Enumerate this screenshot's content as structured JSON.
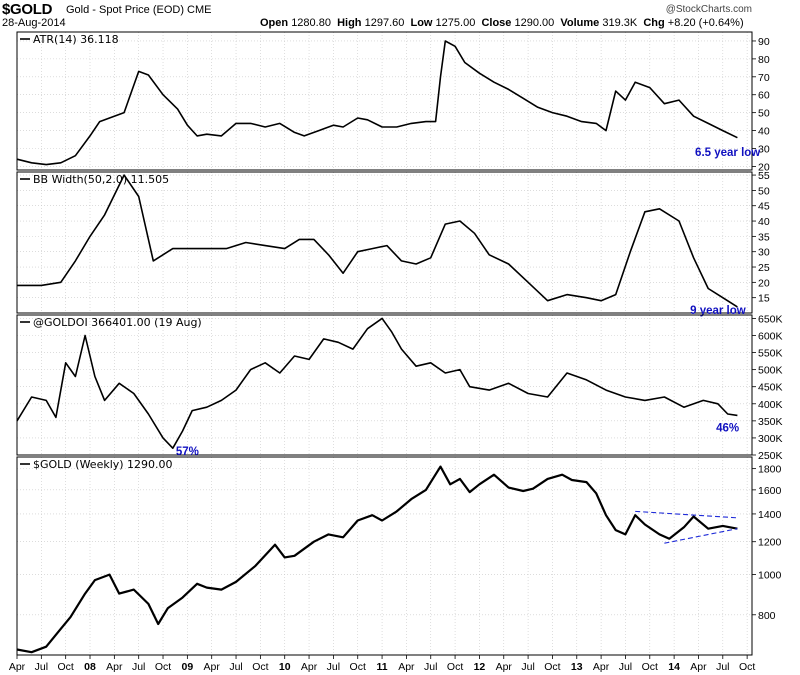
{
  "header": {
    "symbol": "$GOLD",
    "description": "Gold - Spot Price (EOD)",
    "exchange": "CME",
    "date": "28-Aug-2014",
    "open_label": "Open",
    "open": "1280.80",
    "high_label": "High",
    "high": "1297.60",
    "low_label": "Low",
    "low": "1275.00",
    "close_label": "Close",
    "close": "1290.00",
    "volume_label": "Volume",
    "volume": "319.3K",
    "chg_label": "Chg",
    "chg": "+8.20 (+0.64%)",
    "copyright": "@StockCharts.com"
  },
  "colors": {
    "line": "#000000",
    "annotation": "#1010c0",
    "trendline": "#1f2bd8",
    "grid": "#c8c8c8"
  },
  "chart_data": [
    {
      "type": "line",
      "panel": "ATR",
      "title": "ATR(14) 36.118",
      "ylim": [
        18,
        95
      ],
      "y_ticks": [
        20,
        30,
        40,
        50,
        60,
        70,
        80,
        90
      ],
      "y_tick_labels": [
        "20",
        "30",
        "40",
        "50",
        "60",
        "70",
        "80",
        "90"
      ],
      "annotation": {
        "text": "6.5 year low",
        "x": 2014.55,
        "y": 28
      },
      "x": [
        2007.25,
        2007.4,
        2007.55,
        2007.7,
        2007.85,
        2008.0,
        2008.1,
        2008.2,
        2008.35,
        2008.5,
        2008.6,
        2008.75,
        2008.9,
        2009.0,
        2009.1,
        2009.2,
        2009.35,
        2009.5,
        2009.65,
        2009.8,
        2009.95,
        2010.1,
        2010.2,
        2010.35,
        2010.5,
        2010.6,
        2010.75,
        2010.85,
        2011.0,
        2011.15,
        2011.3,
        2011.45,
        2011.55,
        2011.6,
        2011.65,
        2011.75,
        2011.85,
        2012.0,
        2012.15,
        2012.3,
        2012.45,
        2012.6,
        2012.75,
        2012.9,
        2013.05,
        2013.2,
        2013.3,
        2013.4,
        2013.5,
        2013.6,
        2013.75,
        2013.9,
        2014.05,
        2014.2,
        2014.35,
        2014.5,
        2014.65
      ],
      "values": [
        24,
        22,
        21,
        22,
        26,
        37,
        45,
        47,
        50,
        73,
        71,
        60,
        52,
        43,
        37,
        38,
        37,
        44,
        44,
        42,
        44,
        39,
        37,
        40,
        43,
        42,
        47,
        46,
        42,
        42,
        44,
        45,
        45,
        70,
        90,
        87,
        78,
        72,
        67,
        63,
        58,
        53,
        50,
        48,
        45,
        44,
        40,
        62,
        57,
        67,
        64,
        55,
        57,
        48,
        44,
        40,
        36
      ]
    },
    {
      "type": "line",
      "panel": "BB Width",
      "title": "BB Width(50,2.0) 11.505",
      "ylim": [
        10,
        56
      ],
      "y_ticks": [
        15,
        20,
        25,
        30,
        35,
        40,
        45,
        50,
        55
      ],
      "y_tick_labels": [
        "15",
        "20",
        "25",
        "30",
        "35",
        "40",
        "45",
        "50",
        "55"
      ],
      "annotation": {
        "text": "9 year low",
        "x": 2014.45,
        "y": 11
      },
      "x": [
        2007.25,
        2007.5,
        2007.7,
        2007.85,
        2008.0,
        2008.15,
        2008.35,
        2008.5,
        2008.65,
        2008.85,
        2009.0,
        2009.2,
        2009.4,
        2009.6,
        2009.8,
        2010.0,
        2010.15,
        2010.3,
        2010.45,
        2010.6,
        2010.75,
        2010.9,
        2011.05,
        2011.2,
        2011.35,
        2011.5,
        2011.65,
        2011.8,
        2011.95,
        2012.1,
        2012.3,
        2012.5,
        2012.7,
        2012.9,
        2013.1,
        2013.25,
        2013.4,
        2013.55,
        2013.7,
        2013.85,
        2014.05,
        2014.2,
        2014.35,
        2014.5,
        2014.65
      ],
      "values": [
        19,
        19,
        20,
        27,
        35,
        42,
        55,
        48,
        27,
        31,
        31,
        31,
        31,
        33,
        32,
        31,
        34,
        34,
        29,
        23,
        30,
        31,
        32,
        27,
        26,
        28,
        39,
        40,
        36,
        29,
        26,
        20,
        14,
        16,
        15,
        14,
        16,
        30,
        43,
        44,
        40,
        28,
        18,
        15,
        12
      ]
    },
    {
      "type": "line",
      "panel": "Open Interest",
      "title": "@GOLDOI 366401.00 (19 Aug)",
      "ylim": [
        250000,
        660000
      ],
      "y_ticks": [
        250000,
        300000,
        350000,
        400000,
        450000,
        500000,
        550000,
        600000,
        650000
      ],
      "y_tick_labels": [
        "250K",
        "300K",
        "350K",
        "400K",
        "450K",
        "500K",
        "550K",
        "600K",
        "650K"
      ],
      "annotations": [
        {
          "text": "57%",
          "x": 2009.0,
          "y": 262000
        },
        {
          "text": "46%",
          "x": 2014.55,
          "y": 330000
        }
      ],
      "x": [
        2007.25,
        2007.4,
        2007.55,
        2007.65,
        2007.75,
        2007.85,
        2007.95,
        2008.05,
        2008.15,
        2008.3,
        2008.45,
        2008.6,
        2008.75,
        2008.85,
        2008.95,
        2009.05,
        2009.2,
        2009.35,
        2009.5,
        2009.65,
        2009.8,
        2009.95,
        2010.1,
        2010.25,
        2010.4,
        2010.55,
        2010.7,
        2010.85,
        2011.0,
        2011.1,
        2011.2,
        2011.35,
        2011.5,
        2011.65,
        2011.8,
        2011.9,
        2012.1,
        2012.3,
        2012.5,
        2012.7,
        2012.9,
        2013.1,
        2013.3,
        2013.5,
        2013.7,
        2013.9,
        2014.1,
        2014.3,
        2014.45,
        2014.55,
        2014.65
      ],
      "values": [
        350000,
        420000,
        410000,
        360000,
        520000,
        480000,
        600000,
        480000,
        410000,
        460000,
        430000,
        370000,
        300000,
        270000,
        320000,
        380000,
        390000,
        410000,
        440000,
        500000,
        520000,
        490000,
        540000,
        530000,
        590000,
        580000,
        560000,
        620000,
        650000,
        610000,
        560000,
        510000,
        520000,
        490000,
        500000,
        450000,
        440000,
        460000,
        430000,
        420000,
        490000,
        470000,
        440000,
        420000,
        410000,
        420000,
        390000,
        410000,
        400000,
        370000,
        366000
      ]
    },
    {
      "type": "line",
      "panel": "Price",
      "title": "$GOLD (Weekly) 1290.00",
      "ylim": [
        640,
        1920
      ],
      "y_scale": "log",
      "y_ticks": [
        800,
        1000,
        1200,
        1400,
        1600,
        1800
      ],
      "y_tick_labels": [
        "800",
        "1000",
        "1200",
        "1400",
        "1600",
        "1800"
      ],
      "x": [
        2007.25,
        2007.4,
        2007.55,
        2007.7,
        2007.8,
        2007.95,
        2008.05,
        2008.2,
        2008.3,
        2008.45,
        2008.6,
        2008.7,
        2008.8,
        2008.95,
        2009.1,
        2009.2,
        2009.35,
        2009.5,
        2009.7,
        2009.9,
        2010.0,
        2010.1,
        2010.3,
        2010.45,
        2010.6,
        2010.75,
        2010.9,
        2011.0,
        2011.15,
        2011.3,
        2011.45,
        2011.6,
        2011.7,
        2011.8,
        2011.9,
        2012.0,
        2012.15,
        2012.3,
        2012.45,
        2012.55,
        2012.7,
        2012.85,
        2012.95,
        2013.1,
        2013.2,
        2013.3,
        2013.4,
        2013.5,
        2013.6,
        2013.7,
        2013.85,
        2013.95,
        2014.1,
        2014.2,
        2014.35,
        2014.5,
        2014.65
      ],
      "values": [
        660,
        650,
        670,
        740,
        790,
        900,
        970,
        1000,
        900,
        920,
        850,
        760,
        830,
        880,
        950,
        930,
        920,
        960,
        1050,
        1180,
        1100,
        1110,
        1200,
        1250,
        1230,
        1350,
        1390,
        1350,
        1420,
        1520,
        1600,
        1820,
        1650,
        1700,
        1580,
        1650,
        1740,
        1620,
        1590,
        1610,
        1700,
        1740,
        1690,
        1670,
        1570,
        1390,
        1280,
        1250,
        1390,
        1320,
        1250,
        1220,
        1300,
        1380,
        1290,
        1310,
        1290
      ],
      "trendlines": [
        {
          "x": [
            2013.6,
            2014.65
          ],
          "y": [
            1420,
            1370
          ]
        },
        {
          "x": [
            2013.9,
            2014.65
          ],
          "y": [
            1190,
            1290
          ]
        }
      ]
    }
  ],
  "x_axis": {
    "ticks": [
      {
        "t": 2007.25,
        "label": "Apr",
        "year": false
      },
      {
        "t": 2007.5,
        "label": "Jul",
        "year": false
      },
      {
        "t": 2007.75,
        "label": "Oct",
        "year": false
      },
      {
        "t": 2008.0,
        "label": "08",
        "year": true
      },
      {
        "t": 2008.25,
        "label": "Apr",
        "year": false
      },
      {
        "t": 2008.5,
        "label": "Jul",
        "year": false
      },
      {
        "t": 2008.75,
        "label": "Oct",
        "year": false
      },
      {
        "t": 2009.0,
        "label": "09",
        "year": true
      },
      {
        "t": 2009.25,
        "label": "Apr",
        "year": false
      },
      {
        "t": 2009.5,
        "label": "Jul",
        "year": false
      },
      {
        "t": 2009.75,
        "label": "Oct",
        "year": false
      },
      {
        "t": 2010.0,
        "label": "10",
        "year": true
      },
      {
        "t": 2010.25,
        "label": "Apr",
        "year": false
      },
      {
        "t": 2010.5,
        "label": "Jul",
        "year": false
      },
      {
        "t": 2010.75,
        "label": "Oct",
        "year": false
      },
      {
        "t": 2011.0,
        "label": "11",
        "year": true
      },
      {
        "t": 2011.25,
        "label": "Apr",
        "year": false
      },
      {
        "t": 2011.5,
        "label": "Jul",
        "year": false
      },
      {
        "t": 2011.75,
        "label": "Oct",
        "year": false
      },
      {
        "t": 2012.0,
        "label": "12",
        "year": true
      },
      {
        "t": 2012.25,
        "label": "Apr",
        "year": false
      },
      {
        "t": 2012.5,
        "label": "Jul",
        "year": false
      },
      {
        "t": 2012.75,
        "label": "Oct",
        "year": false
      },
      {
        "t": 2013.0,
        "label": "13",
        "year": true
      },
      {
        "t": 2013.25,
        "label": "Apr",
        "year": false
      },
      {
        "t": 2013.5,
        "label": "Jul",
        "year": false
      },
      {
        "t": 2013.75,
        "label": "Oct",
        "year": false
      },
      {
        "t": 2014.0,
        "label": "14",
        "year": true
      },
      {
        "t": 2014.25,
        "label": "Apr",
        "year": false
      },
      {
        "t": 2014.5,
        "label": "Jul",
        "year": false
      },
      {
        "t": 2014.75,
        "label": "Oct",
        "year": false
      }
    ]
  }
}
